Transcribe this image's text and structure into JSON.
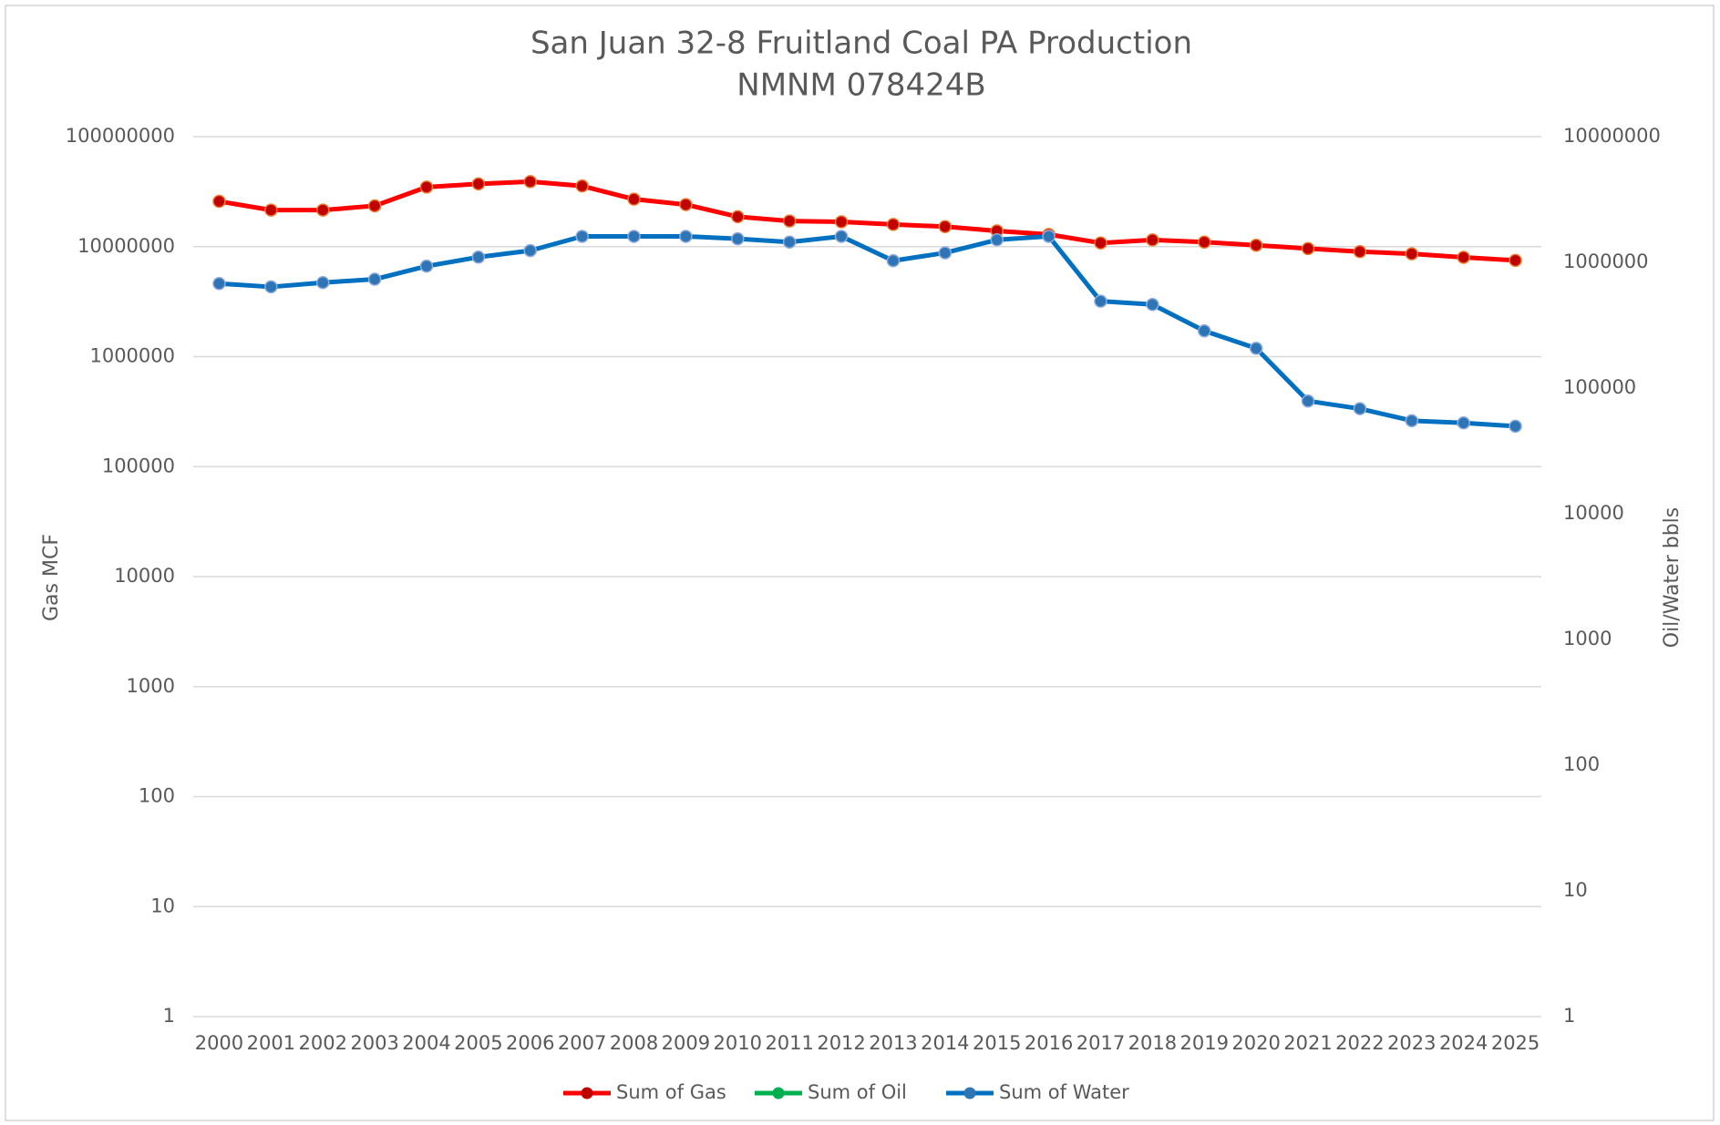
{
  "chart_data": {
    "type": "line",
    "title": "San Juan 32-8 Fruitland Coal PA Production",
    "subtitle": "NMNM 078424B",
    "ylabel": "Gas MCF",
    "y2label": "Oil/Water bbls",
    "yscale": "log",
    "y2scale": "log",
    "ylim": [
      1,
      100000000
    ],
    "yticks": [
      1,
      10,
      100,
      1000,
      10000,
      100000,
      1000000,
      10000000,
      100000000
    ],
    "y2lim": [
      1,
      10000000
    ],
    "y2ticks": [
      1,
      10,
      100,
      1000,
      10000,
      100000,
      1000000,
      10000000
    ],
    "grid": true,
    "legend": "bottom",
    "categories": [
      "2000",
      "2001",
      "2002",
      "2003",
      "2004",
      "2005",
      "2006",
      "2007",
      "2008",
      "2009",
      "2010",
      "2011",
      "2012",
      "2013",
      "2014",
      "2015",
      "2016",
      "2017",
      "2018",
      "2019",
      "2020",
      "2021",
      "2022",
      "2023",
      "2024",
      "2025"
    ],
    "series": [
      {
        "name": "Sum of Gas",
        "color": "#ff0000",
        "marker_color": "#c00000",
        "axis": "y",
        "values": [
          25800000,
          21500000,
          21500000,
          23500000,
          34800000,
          37200000,
          39000000,
          35600000,
          27000000,
          24100000,
          18700000,
          17100000,
          16800000,
          15900000,
          15200000,
          13900000,
          12900000,
          10800000,
          11500000,
          11000000,
          10300000,
          9600000,
          9000000,
          8600000,
          8000000,
          7500000
        ]
      },
      {
        "name": "Sum of Oil",
        "color": "#00b050",
        "marker_color": "#00b050",
        "axis": "y2",
        "values": [
          null,
          null,
          null,
          null,
          null,
          null,
          null,
          null,
          null,
          null,
          null,
          null,
          null,
          null,
          null,
          null,
          null,
          null,
          null,
          null,
          null,
          null,
          null,
          null,
          null,
          null
        ]
      },
      {
        "name": "Sum of Water",
        "color": "#0070c0",
        "marker_color": "#2e75b6",
        "axis": "y2",
        "values": [
          678000,
          638000,
          690000,
          734000,
          933000,
          1100000,
          1240000,
          1610000,
          1610000,
          1610000,
          1540000,
          1450000,
          1610000,
          1030000,
          1190000,
          1510000,
          1610000,
          491000,
          462000,
          285000,
          207000,
          78900,
          68500,
          55000,
          52800,
          49700
        ]
      }
    ]
  }
}
